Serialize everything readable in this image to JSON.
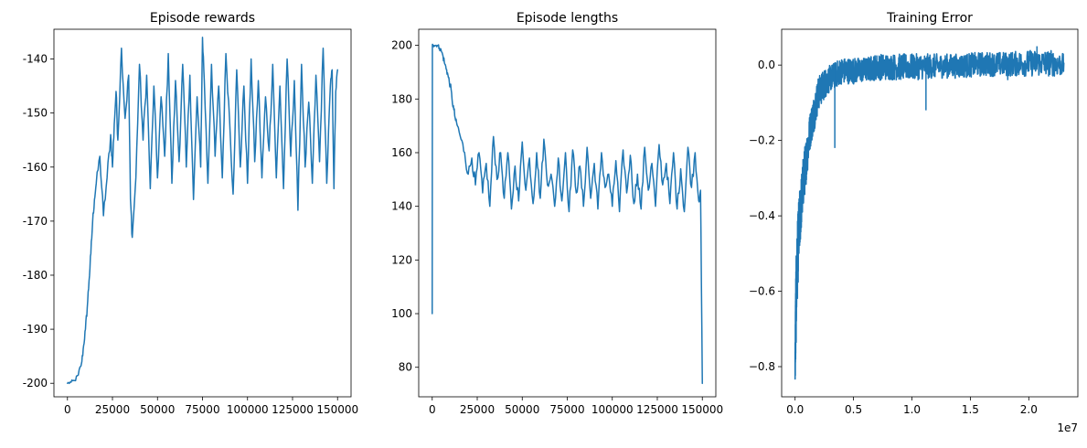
{
  "chart_data": [
    {
      "type": "line",
      "title": "Episode rewards",
      "xlabel": "",
      "ylabel": "",
      "xlim": [
        -7500,
        157500
      ],
      "ylim": [
        -202.5,
        -134.5
      ],
      "xticks": [
        0,
        25000,
        50000,
        75000,
        100000,
        125000,
        150000
      ],
      "xtick_labels": [
        "0",
        "25000",
        "50000",
        "75000",
        "100000",
        "125000",
        "150000"
      ],
      "yticks": [
        -200,
        -190,
        -180,
        -170,
        -160,
        -150,
        -140
      ],
      "ytick_labels": [
        "-200",
        "-190",
        "-180",
        "-170",
        "-160",
        "-150",
        "-140"
      ],
      "grid": false,
      "color": "#1f77b4",
      "series": [
        {
          "x": [
            0,
            2000,
            4000,
            6000,
            8000,
            9000,
            10000,
            11000,
            12000,
            13000,
            14000,
            15000,
            16000,
            18000,
            20000,
            22000,
            24000,
            25000,
            26000,
            27000,
            28000,
            30000,
            32000,
            34000,
            35000,
            36000,
            38000,
            40000,
            42000,
            44000,
            46000,
            48000,
            50000,
            52000,
            54000,
            56000,
            58000,
            60000,
            62000,
            64000,
            66000,
            68000,
            70000,
            72000,
            74000,
            75000,
            76000,
            78000,
            80000,
            82000,
            84000,
            86000,
            88000,
            90000,
            92000,
            94000,
            96000,
            98000,
            100000,
            102000,
            104000,
            106000,
            108000,
            110000,
            112000,
            114000,
            116000,
            118000,
            120000,
            122000,
            124000,
            126000,
            128000,
            130000,
            132000,
            134000,
            136000,
            138000,
            140000,
            142000,
            144000,
            146000,
            147000,
            148000,
            149000,
            150000
          ],
          "y": [
            -200,
            -199.8,
            -199.5,
            -198.5,
            -196,
            -193,
            -190,
            -186,
            -181,
            -176,
            -170,
            -166,
            -163,
            -158,
            -169,
            -162,
            -154,
            -160,
            -152,
            -146,
            -155,
            -138,
            -151,
            -143,
            -166,
            -173,
            -162,
            -141,
            -155,
            -143,
            -164,
            -145,
            -162,
            -147,
            -158,
            -139,
            -163,
            -144,
            -159,
            -141,
            -160,
            -143,
            -166,
            -147,
            -160,
            -136,
            -144,
            -163,
            -141,
            -158,
            -145,
            -162,
            -139,
            -151,
            -165,
            -142,
            -160,
            -145,
            -163,
            -140,
            -159,
            -144,
            -162,
            -147,
            -157,
            -141,
            -162,
            -145,
            -164,
            -140,
            -158,
            -144,
            -168,
            -141,
            -160,
            -148,
            -163,
            -143,
            -159,
            -138,
            -163,
            -145,
            -142,
            -164,
            -146,
            -142
          ]
        }
      ]
    },
    {
      "type": "line",
      "title": "Episode lengths",
      "xlabel": "",
      "ylabel": "",
      "xlim": [
        -7500,
        157500
      ],
      "ylim": [
        69,
        206
      ],
      "xticks": [
        0,
        25000,
        50000,
        75000,
        100000,
        125000,
        150000
      ],
      "xtick_labels": [
        "0",
        "25000",
        "50000",
        "75000",
        "100000",
        "125000",
        "150000"
      ],
      "yticks": [
        80,
        100,
        120,
        140,
        160,
        180,
        200
      ],
      "ytick_labels": [
        "80",
        "100",
        "120",
        "140",
        "160",
        "180",
        "200"
      ],
      "grid": false,
      "color": "#1f77b4",
      "series": [
        {
          "x": [
            0,
            100,
            300,
            1000,
            2000,
            3000,
            4000,
            5000,
            6000,
            7000,
            8000,
            9000,
            10000,
            11000,
            12000,
            13000,
            14000,
            16000,
            18000,
            20000,
            22000,
            24000,
            26000,
            28000,
            30000,
            32000,
            34000,
            36000,
            38000,
            40000,
            42000,
            44000,
            46000,
            48000,
            50000,
            52000,
            54000,
            56000,
            58000,
            60000,
            62000,
            64000,
            66000,
            68000,
            70000,
            72000,
            74000,
            76000,
            78000,
            80000,
            82000,
            84000,
            86000,
            88000,
            90000,
            92000,
            94000,
            96000,
            98000,
            100000,
            102000,
            104000,
            106000,
            108000,
            110000,
            112000,
            114000,
            116000,
            118000,
            120000,
            122000,
            124000,
            126000,
            128000,
            130000,
            132000,
            134000,
            136000,
            138000,
            140000,
            142000,
            144000,
            146000,
            148000,
            149000,
            150000
          ],
          "y": [
            100,
            200,
            200,
            200,
            200,
            200,
            199,
            198,
            196,
            193,
            191,
            188,
            185,
            180,
            176,
            172,
            170,
            165,
            160,
            152,
            158,
            148,
            160,
            145,
            156,
            140,
            166,
            150,
            160,
            143,
            160,
            139,
            155,
            142,
            164,
            146,
            158,
            141,
            160,
            143,
            165,
            148,
            152,
            140,
            158,
            142,
            160,
            138,
            161,
            145,
            155,
            140,
            162,
            143,
            156,
            139,
            160,
            147,
            152,
            140,
            157,
            138,
            161,
            145,
            159,
            141,
            152,
            139,
            162,
            146,
            156,
            140,
            163,
            148,
            156,
            141,
            160,
            139,
            154,
            138,
            162,
            147,
            160,
            142,
            146,
            74
          ]
        }
      ]
    },
    {
      "type": "line",
      "title": "Training Error",
      "xlabel": "",
      "ylabel": "",
      "x_scale_label": "1e7",
      "xlim": [
        -1150000,
        24200000
      ],
      "ylim": [
        -0.88,
        0.095
      ],
      "xticks": [
        0,
        5000000,
        10000000,
        15000000,
        20000000
      ],
      "xtick_labels": [
        "0.0",
        "0.5",
        "1.0",
        "1.5",
        "2.0"
      ],
      "yticks": [
        -0.8,
        -0.6,
        -0.4,
        -0.2,
        0.0
      ],
      "ytick_labels": [
        "−0.8",
        "−0.6",
        "−0.4",
        "−0.2",
        "0.0"
      ],
      "grid": false,
      "color": "#1f77b4",
      "series": [
        {
          "x": [
            0,
            50000,
            100000,
            200000,
            300000,
            500000,
            700000,
            1000000,
            1300000,
            1600000,
            2000000,
            2500000,
            3000000,
            3500000,
            4000000,
            5000000,
            6000000,
            7000000,
            8000000,
            10000000,
            12000000,
            14000000,
            16000000,
            18000000,
            20000000,
            22000000,
            23000000
          ],
          "y_upper": [
            -0.75,
            -0.55,
            -0.5,
            -0.42,
            -0.36,
            -0.3,
            -0.24,
            -0.18,
            -0.12,
            -0.08,
            -0.03,
            -0.01,
            0.0,
            0.01,
            0.02,
            0.02,
            0.02,
            0.03,
            0.03,
            0.03,
            0.03,
            0.03,
            0.035,
            0.035,
            0.04,
            0.04,
            0.03
          ],
          "y_lower": [
            -0.84,
            -0.8,
            -0.72,
            -0.62,
            -0.55,
            -0.45,
            -0.38,
            -0.3,
            -0.22,
            -0.18,
            -0.12,
            -0.09,
            -0.07,
            -0.06,
            -0.05,
            -0.05,
            -0.045,
            -0.04,
            -0.04,
            -0.04,
            -0.035,
            -0.035,
            -0.03,
            -0.03,
            -0.03,
            -0.03,
            -0.03
          ]
        }
      ]
    }
  ]
}
